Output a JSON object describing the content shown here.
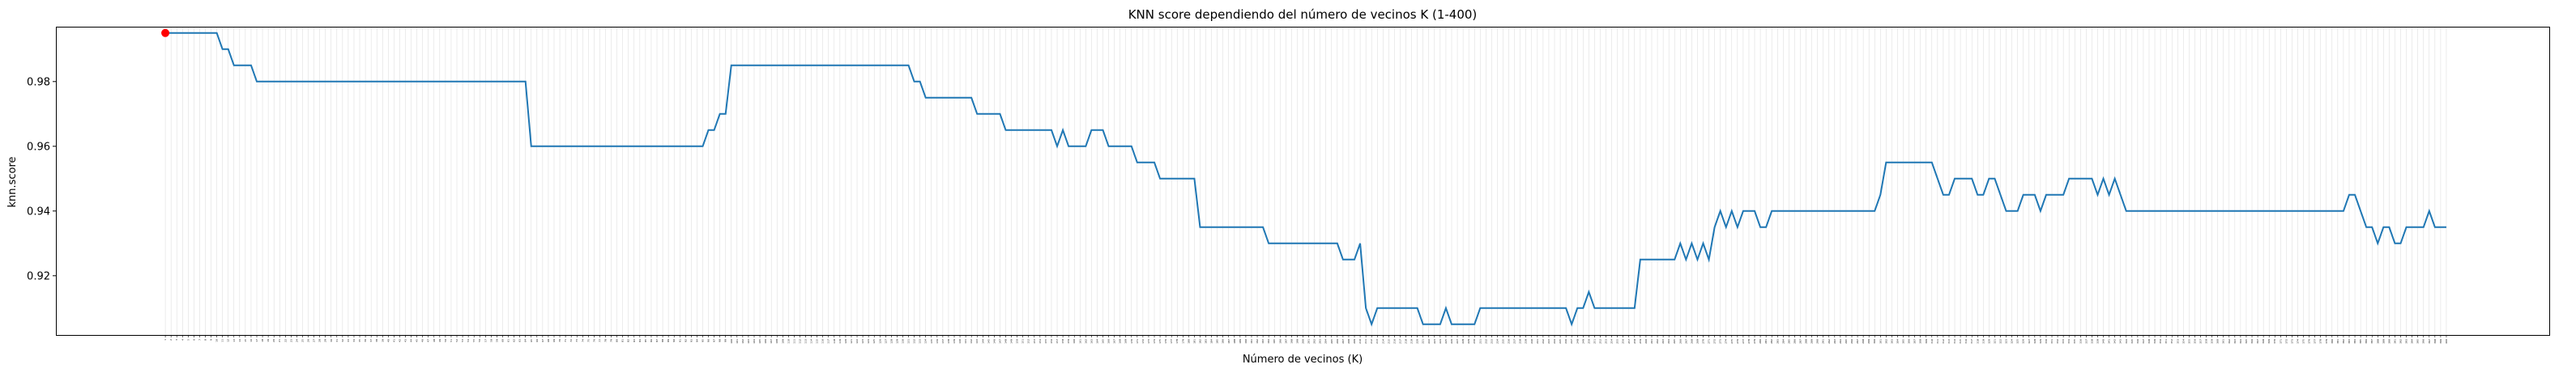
{
  "chart_data": {
    "type": "line",
    "title": "KNN score dependiendo del número de vecinos K (1-400)",
    "xlabel": "Número de vecinos (K)",
    "ylabel": "knn.score",
    "xlim": [
      -18,
      418
    ],
    "ylim": [
      0.9017,
      0.9967
    ],
    "x_range": [
      1,
      400
    ],
    "yticks": [
      0.92,
      0.94,
      0.96,
      0.98
    ],
    "ytick_labels": [
      "0.92",
      "0.94",
      "0.96",
      "0.98"
    ],
    "grid": "vertical lines at every K",
    "line_color": "#1f77b4",
    "marker_color": "#ff0000",
    "highlight": {
      "x": 1,
      "y": 0.995
    },
    "series": [
      {
        "steps": [
          [
            1,
            0.995
          ],
          [
            11,
            0.99
          ],
          [
            13,
            0.985
          ],
          [
            17,
            0.98
          ],
          [
            65,
            0.96
          ],
          [
            96,
            0.965
          ],
          [
            98,
            0.97
          ],
          [
            100,
            0.985
          ],
          [
            131,
            0.985
          ],
          [
            132,
            0.98
          ],
          [
            134,
            0.975
          ],
          [
            141,
            0.975
          ],
          [
            142,
            0.975
          ],
          [
            143,
            0.97
          ],
          [
            147,
            0.97
          ],
          [
            148,
            0.965
          ],
          [
            155,
            0.965
          ],
          [
            156,
            0.965
          ],
          [
            157,
            0.96
          ],
          [
            158,
            0.965
          ],
          [
            159,
            0.96
          ],
          [
            162,
            0.96
          ],
          [
            163,
            0.965
          ],
          [
            166,
            0.96
          ],
          [
            169,
            0.96
          ],
          [
            171,
            0.955
          ],
          [
            173,
            0.955
          ],
          [
            175,
            0.95
          ],
          [
            181,
            0.95
          ],
          [
            182,
            0.935
          ],
          [
            193,
            0.935
          ],
          [
            194,
            0.93
          ],
          [
            206,
            0.93
          ],
          [
            207,
            0.925
          ],
          [
            209,
            0.925
          ],
          [
            210,
            0.93
          ],
          [
            211,
            0.91
          ],
          [
            212,
            0.905
          ],
          [
            213,
            0.91
          ],
          [
            220,
            0.91
          ],
          [
            221,
            0.905
          ],
          [
            224,
            0.905
          ],
          [
            225,
            0.91
          ],
          [
            226,
            0.905
          ],
          [
            231,
            0.91
          ],
          [
            246,
            0.91
          ],
          [
            247,
            0.905
          ],
          [
            248,
            0.91
          ],
          [
            250,
            0.915
          ],
          [
            251,
            0.91
          ],
          [
            259,
            0.925
          ],
          [
            266,
            0.93
          ],
          [
            267,
            0.925
          ],
          [
            268,
            0.93
          ],
          [
            269,
            0.925
          ],
          [
            270,
            0.93
          ],
          [
            271,
            0.925
          ],
          [
            272,
            0.935
          ],
          [
            273,
            0.94
          ],
          [
            274,
            0.935
          ],
          [
            275,
            0.94
          ],
          [
            276,
            0.935
          ],
          [
            277,
            0.94
          ],
          [
            280,
            0.935
          ],
          [
            282,
            0.94
          ],
          [
            301,
            0.945
          ],
          [
            302,
            0.955
          ],
          [
            310,
            0.955
          ],
          [
            311,
            0.95
          ],
          [
            312,
            0.945
          ],
          [
            313,
            0.945
          ],
          [
            314,
            0.95
          ],
          [
            318,
            0.945
          ],
          [
            320,
            0.95
          ],
          [
            322,
            0.945
          ],
          [
            323,
            0.94
          ],
          [
            326,
            0.945
          ],
          [
            328,
            0.945
          ],
          [
            329,
            0.94
          ],
          [
            330,
            0.945
          ],
          [
            334,
            0.95
          ],
          [
            339,
            0.945
          ],
          [
            340,
            0.95
          ],
          [
            341,
            0.945
          ],
          [
            342,
            0.95
          ],
          [
            343,
            0.945
          ],
          [
            344,
            0.94
          ],
          [
            383,
            0.945
          ],
          [
            384,
            0.945
          ],
          [
            385,
            0.94
          ],
          [
            386,
            0.935
          ],
          [
            388,
            0.93
          ],
          [
            389,
            0.935
          ],
          [
            391,
            0.93
          ],
          [
            393,
            0.935
          ],
          [
            397,
            0.94
          ],
          [
            398,
            0.935
          ],
          [
            400,
            0.935
          ]
        ]
      }
    ]
  }
}
